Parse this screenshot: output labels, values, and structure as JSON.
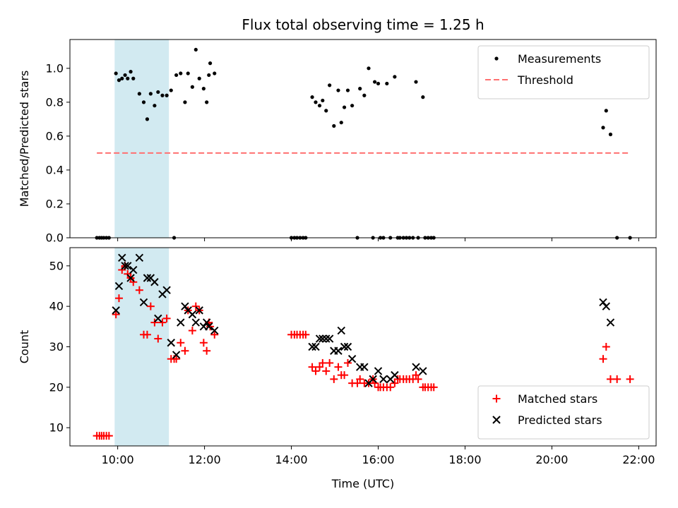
{
  "chart_data": {
    "type": "scatter",
    "title": "Flux total observing time = 1.25 h",
    "xlabel": "Time (UTC)",
    "x_ticks": [
      "10:00",
      "12:00",
      "14:00",
      "16:00",
      "18:00",
      "20:00",
      "22:00"
    ],
    "x_tick_hours": [
      10,
      12,
      14,
      16,
      18,
      20,
      22
    ],
    "xlim_hours": [
      8.9,
      22.4
    ],
    "shaded_interval_hours": [
      9.93,
      11.18
    ],
    "shaded_color": "#add8e6",
    "panels": [
      {
        "ylabel": "Matched/Predicted stars",
        "ylim": [
          0,
          1.17
        ],
        "y_ticks": [
          0.0,
          0.2,
          0.4,
          0.6,
          0.8,
          1.0
        ],
        "y_tick_labels": [
          "0.0",
          "0.2",
          "0.4",
          "0.6",
          "0.8",
          "1.0"
        ],
        "legend": {
          "position": "upper right",
          "entries": [
            "Measurements",
            "Threshold"
          ]
        },
        "series": [
          {
            "name": "Measurements",
            "marker": "dot",
            "color": "#000000",
            "points": [
              [
                9.52,
                0
              ],
              [
                9.58,
                0
              ],
              [
                9.63,
                0
              ],
              [
                9.68,
                0
              ],
              [
                9.74,
                0
              ],
              [
                9.8,
                0
              ],
              [
                9.96,
                0.97
              ],
              [
                10.03,
                0.93
              ],
              [
                10.1,
                0.94
              ],
              [
                10.17,
                0.96
              ],
              [
                10.23,
                0.94
              ],
              [
                10.3,
                0.98
              ],
              [
                10.36,
                0.94
              ],
              [
                10.5,
                0.85
              ],
              [
                10.6,
                0.8
              ],
              [
                10.68,
                0.7
              ],
              [
                10.76,
                0.85
              ],
              [
                10.85,
                0.78
              ],
              [
                10.93,
                0.86
              ],
              [
                11.03,
                0.84
              ],
              [
                11.13,
                0.84
              ],
              [
                11.23,
                0.87
              ],
              [
                11.3,
                0
              ],
              [
                11.35,
                0.96
              ],
              [
                11.45,
                0.97
              ],
              [
                11.55,
                0.8
              ],
              [
                11.62,
                0.97
              ],
              [
                11.72,
                0.89
              ],
              [
                11.8,
                1.11
              ],
              [
                11.88,
                0.94
              ],
              [
                11.98,
                0.88
              ],
              [
                12.05,
                0.8
              ],
              [
                12.1,
                0.96
              ],
              [
                12.13,
                1.03
              ],
              [
                12.23,
                0.97
              ],
              [
                14.0,
                0
              ],
              [
                14.07,
                0
              ],
              [
                14.13,
                0
              ],
              [
                14.2,
                0
              ],
              [
                14.27,
                0
              ],
              [
                14.33,
                0
              ],
              [
                14.48,
                0.83
              ],
              [
                14.56,
                0.8
              ],
              [
                14.65,
                0.78
              ],
              [
                14.72,
                0.81
              ],
              [
                14.8,
                0.75
              ],
              [
                14.88,
                0.9
              ],
              [
                14.98,
                0.66
              ],
              [
                15.08,
                0.87
              ],
              [
                15.15,
                0.68
              ],
              [
                15.22,
                0.77
              ],
              [
                15.3,
                0.87
              ],
              [
                15.4,
                0.78
              ],
              [
                15.52,
                0
              ],
              [
                15.58,
                0.88
              ],
              [
                15.68,
                0.84
              ],
              [
                15.78,
                1.0
              ],
              [
                15.88,
                0
              ],
              [
                15.92,
                0.92
              ],
              [
                16.0,
                0.91
              ],
              [
                16.05,
                0
              ],
              [
                16.12,
                0
              ],
              [
                16.2,
                0.91
              ],
              [
                16.28,
                0
              ],
              [
                16.38,
                0.95
              ],
              [
                16.45,
                0
              ],
              [
                16.5,
                0
              ],
              [
                16.58,
                0
              ],
              [
                16.65,
                0
              ],
              [
                16.72,
                0
              ],
              [
                16.8,
                0
              ],
              [
                16.87,
                0.92
              ],
              [
                16.92,
                0
              ],
              [
                17.03,
                0.83
              ],
              [
                17.08,
                0
              ],
              [
                17.15,
                0
              ],
              [
                17.22,
                0
              ],
              [
                17.28,
                0
              ],
              [
                21.18,
                0.65
              ],
              [
                21.25,
                0.75
              ],
              [
                21.35,
                0.61
              ],
              [
                21.5,
                0
              ],
              [
                21.8,
                0
              ]
            ]
          },
          {
            "name": "Threshold",
            "marker": "dashed-line",
            "color": "#ff7070",
            "points": [
              [
                9.52,
                0.5
              ],
              [
                21.8,
                0.5
              ]
            ]
          }
        ]
      },
      {
        "ylabel": "Count",
        "ylim": [
          5.5,
          54.5
        ],
        "y_ticks": [
          10,
          20,
          30,
          40,
          50
        ],
        "y_tick_labels": [
          "10",
          "20",
          "30",
          "40",
          "50"
        ],
        "legend": {
          "position": "lower right",
          "entries": [
            "Matched stars",
            "Predicted stars"
          ]
        },
        "series": [
          {
            "name": "Matched stars",
            "marker": "plus",
            "color": "#ff0000",
            "points": [
              [
                9.52,
                8
              ],
              [
                9.58,
                8
              ],
              [
                9.63,
                8
              ],
              [
                9.68,
                8
              ],
              [
                9.74,
                8
              ],
              [
                9.8,
                8
              ],
              [
                9.96,
                38
              ],
              [
                10.03,
                42
              ],
              [
                10.1,
                49
              ],
              [
                10.17,
                50
              ],
              [
                10.23,
                48
              ],
              [
                10.3,
                47
              ],
              [
                10.36,
                46
              ],
              [
                10.5,
                44
              ],
              [
                10.6,
                33
              ],
              [
                10.68,
                33
              ],
              [
                10.76,
                40
              ],
              [
                10.85,
                36
              ],
              [
                10.93,
                32
              ],
              [
                11.03,
                36
              ],
              [
                11.13,
                37
              ],
              [
                11.23,
                27
              ],
              [
                11.3,
                27
              ],
              [
                11.35,
                27
              ],
              [
                11.45,
                31
              ],
              [
                11.55,
                29
              ],
              [
                11.62,
                39
              ],
              [
                11.72,
                34
              ],
              [
                11.8,
                40
              ],
              [
                11.88,
                39
              ],
              [
                11.98,
                31
              ],
              [
                12.05,
                29
              ],
              [
                12.1,
                36
              ],
              [
                12.13,
                35
              ],
              [
                12.23,
                33
              ],
              [
                14.0,
                33
              ],
              [
                14.07,
                33
              ],
              [
                14.13,
                33
              ],
              [
                14.2,
                33
              ],
              [
                14.27,
                33
              ],
              [
                14.33,
                33
              ],
              [
                14.48,
                25
              ],
              [
                14.56,
                24
              ],
              [
                14.65,
                25
              ],
              [
                14.72,
                26
              ],
              [
                14.8,
                24
              ],
              [
                14.88,
                26
              ],
              [
                14.98,
                22
              ],
              [
                15.08,
                25
              ],
              [
                15.15,
                23
              ],
              [
                15.22,
                23
              ],
              [
                15.3,
                26
              ],
              [
                15.4,
                21
              ],
              [
                15.52,
                21
              ],
              [
                15.58,
                22
              ],
              [
                15.68,
                21
              ],
              [
                15.78,
                21
              ],
              [
                15.88,
                22
              ],
              [
                15.92,
                21
              ],
              [
                16.0,
                20
              ],
              [
                16.05,
                20
              ],
              [
                16.12,
                20
              ],
              [
                16.2,
                20
              ],
              [
                16.28,
                20
              ],
              [
                16.38,
                21
              ],
              [
                16.45,
                22
              ],
              [
                16.5,
                22
              ],
              [
                16.58,
                22
              ],
              [
                16.65,
                22
              ],
              [
                16.72,
                22
              ],
              [
                16.8,
                22
              ],
              [
                16.87,
                23
              ],
              [
                16.92,
                22
              ],
              [
                17.03,
                20
              ],
              [
                17.08,
                20
              ],
              [
                17.15,
                20
              ],
              [
                17.22,
                20
              ],
              [
                17.28,
                20
              ],
              [
                21.18,
                27
              ],
              [
                21.25,
                30
              ],
              [
                21.35,
                22
              ],
              [
                21.5,
                22
              ],
              [
                21.8,
                22
              ]
            ]
          },
          {
            "name": "Predicted stars",
            "marker": "x",
            "color": "#000000",
            "points": [
              [
                9.96,
                39
              ],
              [
                10.03,
                45
              ],
              [
                10.1,
                52
              ],
              [
                10.17,
                50
              ],
              [
                10.23,
                50
              ],
              [
                10.3,
                47
              ],
              [
                10.36,
                49
              ],
              [
                10.5,
                52
              ],
              [
                10.6,
                41
              ],
              [
                10.68,
                47
              ],
              [
                10.76,
                47
              ],
              [
                10.85,
                46
              ],
              [
                10.93,
                37
              ],
              [
                11.03,
                43
              ],
              [
                11.13,
                44
              ],
              [
                11.23,
                31
              ],
              [
                11.35,
                28
              ],
              [
                11.45,
                36
              ],
              [
                11.55,
                40
              ],
              [
                11.62,
                39
              ],
              [
                11.72,
                38
              ],
              [
                11.8,
                36
              ],
              [
                11.88,
                39
              ],
              [
                11.98,
                35
              ],
              [
                12.05,
                36
              ],
              [
                12.1,
                35
              ],
              [
                12.23,
                34
              ],
              [
                14.48,
                30
              ],
              [
                14.56,
                30
              ],
              [
                14.65,
                32
              ],
              [
                14.72,
                32
              ],
              [
                14.8,
                32
              ],
              [
                14.88,
                32
              ],
              [
                14.98,
                29
              ],
              [
                15.08,
                29
              ],
              [
                15.15,
                34
              ],
              [
                15.22,
                30
              ],
              [
                15.3,
                30
              ],
              [
                15.4,
                27
              ],
              [
                15.58,
                25
              ],
              [
                15.68,
                25
              ],
              [
                15.78,
                21
              ],
              [
                15.88,
                22
              ],
              [
                16.0,
                24
              ],
              [
                16.12,
                22
              ],
              [
                16.28,
                22
              ],
              [
                16.38,
                23
              ],
              [
                16.87,
                25
              ],
              [
                17.03,
                24
              ],
              [
                21.18,
                41
              ],
              [
                21.25,
                40
              ],
              [
                21.35,
                36
              ]
            ]
          }
        ]
      }
    ]
  }
}
